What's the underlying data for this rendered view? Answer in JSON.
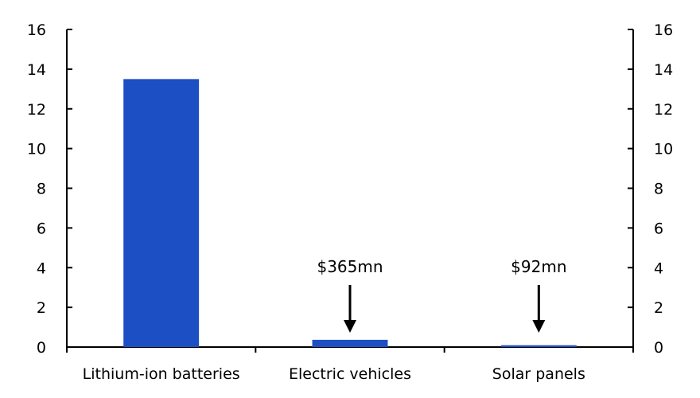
{
  "chart_data": {
    "type": "bar",
    "categories": [
      "Lithium-ion batteries",
      "Electric vehicles",
      "Solar panels"
    ],
    "values": [
      13.5,
      0.365,
      0.092
    ],
    "ylim": [
      0,
      16
    ],
    "yticks": [
      0,
      2,
      4,
      6,
      8,
      10,
      12,
      14,
      16
    ],
    "secondary_y_axis": true,
    "grid": false,
    "annotations": [
      {
        "category": "Electric vehicles",
        "text": "$365mn"
      },
      {
        "category": "Solar panels",
        "text": "$92mn"
      }
    ],
    "colors": {
      "bar": "#1c4fc4",
      "axis": "#000000"
    }
  }
}
